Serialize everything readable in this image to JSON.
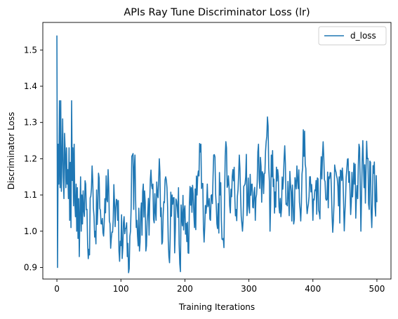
{
  "chart_data": {
    "type": "line",
    "title": "APIs Ray Tune Discriminator Loss (lr)",
    "xlabel": "Training Iterations",
    "ylabel": "Discriminator Loss",
    "xlim": [
      -22,
      522
    ],
    "ylim": [
      0.868,
      1.576
    ],
    "xticks": [
      0,
      100,
      200,
      300,
      400,
      500
    ],
    "xtick_labels": [
      "0",
      "100",
      "200",
      "300",
      "400",
      "500"
    ],
    "yticks": [
      0.9,
      1.0,
      1.1,
      1.2,
      1.3,
      1.4,
      1.5
    ],
    "ytick_labels": [
      "0.9",
      "1.0",
      "1.1",
      "1.2",
      "1.3",
      "1.4",
      "1.5"
    ],
    "grid": false,
    "legend_position": "top-right",
    "series": [
      {
        "name": "d_loss",
        "color": "#1f77b4",
        "x_start": 0,
        "x_step": 1,
        "keypoints": [
          [
            0,
            1.54
          ],
          [
            1,
            0.9
          ],
          [
            2,
            1.24
          ],
          [
            3,
            1.13
          ],
          [
            4,
            1.36
          ],
          [
            5,
            1.12
          ],
          [
            6,
            1.36
          ],
          [
            7,
            1.11
          ],
          [
            8,
            1.2
          ],
          [
            9,
            1.31
          ],
          [
            10,
            1.15
          ],
          [
            11,
            1.09
          ],
          [
            12,
            1.27
          ],
          [
            13,
            1.22
          ],
          [
            14,
            1.12
          ],
          [
            15,
            1.23
          ],
          [
            16,
            1.13
          ],
          [
            17,
            1.17
          ],
          [
            18,
            1.09
          ],
          [
            19,
            1.23
          ],
          [
            20,
            1.03
          ],
          [
            21,
            1.19
          ],
          [
            22,
            1.01
          ],
          [
            23,
            1.36
          ],
          [
            24,
            1.14
          ],
          [
            25,
            1.23
          ],
          [
            26,
            1.07
          ],
          [
            27,
            1.24
          ],
          [
            28,
            1.08
          ],
          [
            29,
            1.04
          ],
          [
            30,
            1.13
          ],
          [
            31,
            1.0
          ],
          [
            32,
            1.12
          ],
          [
            33,
            0.98
          ],
          [
            34,
            1.09
          ],
          [
            35,
            0.93
          ],
          [
            36,
            1.05
          ],
          [
            37,
            1.15
          ],
          [
            38,
            1.0
          ],
          [
            39,
            1.1
          ],
          [
            40,
            1.02
          ],
          [
            45,
            1.13
          ],
          [
            50,
            0.95
          ],
          [
            55,
            1.18
          ],
          [
            60,
            1.0
          ],
          [
            65,
            1.16
          ],
          [
            70,
            1.02
          ],
          [
            75,
            1.09
          ],
          [
            80,
            1.17
          ],
          [
            85,
            0.98
          ],
          [
            90,
            1.08
          ],
          [
            95,
            1.03
          ],
          [
            100,
            0.96
          ],
          [
            105,
            1.04
          ],
          [
            110,
            0.93
          ],
          [
            115,
            1.0
          ],
          [
            118,
            1.21
          ],
          [
            120,
            1.06
          ],
          [
            122,
            1.21
          ],
          [
            125,
            1.03
          ],
          [
            130,
            0.97
          ],
          [
            135,
            1.13
          ],
          [
            140,
            0.96
          ],
          [
            145,
            1.08
          ],
          [
            150,
            1.13
          ],
          [
            155,
            1.03
          ],
          [
            160,
            1.2
          ],
          [
            165,
            0.97
          ],
          [
            170,
            1.15
          ],
          [
            175,
            0.93
          ],
          [
            180,
            1.1
          ],
          [
            185,
            1.0
          ],
          [
            190,
            1.12
          ],
          [
            192,
            0.91
          ],
          [
            195,
            1.04
          ],
          [
            200,
            1.07
          ],
          [
            205,
            0.94
          ],
          [
            210,
            1.12
          ],
          [
            215,
            1.01
          ],
          [
            220,
            1.15
          ],
          [
            225,
            1.24
          ],
          [
            230,
            0.97
          ],
          [
            235,
            1.13
          ],
          [
            240,
            1.03
          ],
          [
            245,
            1.21
          ],
          [
            250,
            1.02
          ],
          [
            255,
            1.1
          ],
          [
            260,
            0.98
          ],
          [
            265,
            1.23
          ],
          [
            270,
            1.07
          ],
          [
            275,
            1.17
          ],
          [
            280,
            1.06
          ],
          [
            285,
            1.21
          ],
          [
            290,
            1.0
          ],
          [
            295,
            1.15
          ],
          [
            300,
            1.07
          ],
          [
            305,
            1.13
          ],
          [
            310,
            1.03
          ],
          [
            315,
            1.24
          ],
          [
            320,
            1.08
          ],
          [
            325,
            1.16
          ],
          [
            330,
            1.29
          ],
          [
            333,
            1.0
          ],
          [
            335,
            1.21
          ],
          [
            340,
            1.05
          ],
          [
            345,
            1.17
          ],
          [
            350,
            1.04
          ],
          [
            355,
            1.2
          ],
          [
            360,
            1.07
          ],
          [
            365,
            1.13
          ],
          [
            370,
            1.02
          ],
          [
            375,
            1.18
          ],
          [
            380,
            1.06
          ],
          [
            385,
            1.28
          ],
          [
            390,
            1.08
          ],
          [
            395,
            1.15
          ],
          [
            400,
            1.03
          ],
          [
            405,
            1.14
          ],
          [
            410,
            1.05
          ],
          [
            415,
            1.21
          ],
          [
            420,
            1.09
          ],
          [
            425,
            1.15
          ],
          [
            430,
            1.04
          ],
          [
            435,
            1.17
          ],
          [
            440,
            1.07
          ],
          [
            445,
            1.14
          ],
          [
            450,
            1.05
          ],
          [
            455,
            1.2
          ],
          [
            460,
            1.08
          ],
          [
            465,
            1.13
          ],
          [
            470,
            1.09
          ],
          [
            473,
            1.23
          ],
          [
            475,
            1.0
          ],
          [
            478,
            1.25
          ],
          [
            480,
            1.12
          ],
          [
            485,
            1.2
          ],
          [
            488,
            1.06
          ],
          [
            490,
            1.19
          ],
          [
            492,
            1.01
          ],
          [
            495,
            1.16
          ],
          [
            497,
            1.07
          ],
          [
            500,
            1.08
          ]
        ]
      }
    ]
  }
}
